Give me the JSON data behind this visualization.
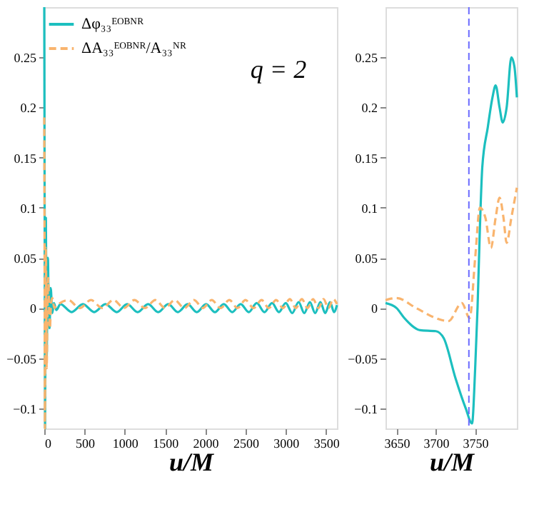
{
  "chart_data": [
    {
      "type": "line",
      "xlabel": "u/M",
      "xlim": [
        0,
        3636
      ],
      "xticks": [
        0,
        500,
        1000,
        1500,
        2000,
        2500,
        3000,
        3500
      ],
      "ylim": [
        -0.12,
        0.3
      ],
      "yticks": [
        -0.1,
        -0.05,
        0,
        0.05,
        0.1,
        0.15,
        0.2,
        0.25
      ],
      "grid": false,
      "legend": "top left",
      "marker": "none",
      "annotations": [
        "q = 2"
      ],
      "series": [
        {
          "name": "Δφ₃₃ᴱᴼᴮᴺᴿ",
          "color": "#1cbfbf",
          "line_style": "solid",
          "x": [
            0,
            5,
            10,
            15,
            20,
            25,
            30,
            38,
            45,
            55,
            65,
            80,
            100,
            120,
            150,
            200,
            340,
            480,
            620,
            760,
            900,
            1030,
            1160,
            1290,
            1415,
            1540,
            1660,
            1780,
            1895,
            2010,
            2120,
            2230,
            2335,
            2440,
            2540,
            2640,
            2735,
            2830,
            2915,
            3000,
            3080,
            3160,
            3230,
            3300,
            3365,
            3430,
            3490,
            3550,
            3600,
            3636
          ],
          "values": [
            0.3,
            0.1,
            -0.12,
            -0.02,
            0.09,
            0.02,
            -0.05,
            0.01,
            0.05,
            0.0,
            -0.02,
            0.02,
            -0.005,
            0.005,
            -0.002,
            0.004,
            -0.004,
            0.004,
            -0.004,
            0.004,
            -0.004,
            0.004,
            -0.004,
            0.004,
            -0.004,
            0.004,
            -0.004,
            0.004,
            -0.004,
            0.004,
            -0.004,
            0.004,
            -0.004,
            0.004,
            -0.004,
            0.005,
            -0.004,
            0.005,
            -0.004,
            0.005,
            -0.005,
            0.006,
            -0.005,
            0.006,
            -0.005,
            0.006,
            -0.005,
            0.006,
            -0.004,
            0.003
          ]
        },
        {
          "name": "ΔA₃₃ᴱᴼᴮᴺᴿ/A₃₃ᴺᴿ",
          "color": "#f9b46e",
          "line_style": "dashed",
          "x": [
            0,
            4,
            8,
            14,
            20,
            25,
            30,
            40,
            50,
            60,
            70,
            85,
            100,
            125,
            150,
            300,
            440,
            580,
            720,
            860,
            990,
            1120,
            1250,
            1380,
            1500,
            1620,
            1740,
            1860,
            1970,
            2080,
            2190,
            2300,
            2400,
            2500,
            2600,
            2700,
            2790,
            2880,
            2965,
            3050,
            3125,
            3200,
            3270,
            3340,
            3405,
            3470,
            3530,
            3590,
            3636
          ],
          "values": [
            0.19,
            0.05,
            -0.12,
            0.0,
            0.06,
            0.0,
            -0.06,
            0.0,
            0.03,
            0.0,
            -0.02,
            0.005,
            0.01,
            0.0,
            0.002,
            0.008,
            0.0,
            0.008,
            0.0,
            0.008,
            0.0,
            0.008,
            0.0,
            0.008,
            0.0,
            0.008,
            0.0,
            0.008,
            0.0,
            0.008,
            0.0,
            0.008,
            0.0,
            0.008,
            0.0,
            0.008,
            0.0,
            0.008,
            0.0,
            0.009,
            0.0,
            0.009,
            0.0,
            0.009,
            0.0,
            0.009,
            0.0,
            0.009,
            0.004
          ]
        }
      ]
    },
    {
      "type": "line",
      "xlabel": "u/M",
      "xlim": [
        3636,
        3803
      ],
      "xticks": [
        3650,
        3700,
        3750
      ],
      "ylim": [
        -0.12,
        0.3
      ],
      "yticks": [
        -0.1,
        -0.05,
        0,
        0.05,
        0.1,
        0.15,
        0.2,
        0.25
      ],
      "grid": false,
      "legend": false,
      "marker": "none",
      "ref_lines": [
        {
          "axis": "x",
          "value": 3742,
          "label": null,
          "color": "#6a6aff",
          "line_style": "dashed"
        }
      ],
      "series": [
        {
          "color": "#1cbfbf",
          "line_style": "solid",
          "x": [
            3636,
            3650,
            3660,
            3680,
            3700,
            3710,
            3725,
            3738,
            3746,
            3750,
            3753,
            3756,
            3759,
            3766,
            3772,
            3776,
            3781,
            3785,
            3790,
            3796,
            3800,
            3803
          ],
          "values": [
            0.005,
            0.0,
            -0.01,
            -0.022,
            -0.023,
            -0.03,
            -0.07,
            -0.1,
            -0.115,
            -0.06,
            0.0,
            0.08,
            0.14,
            0.18,
            0.21,
            0.222,
            0.2,
            0.185,
            0.2,
            0.25,
            0.24,
            0.21
          ]
        },
        {
          "color": "#f9b46e",
          "line_style": "dashed",
          "x": [
            3636,
            3650,
            3675,
            3700,
            3716,
            3733,
            3743,
            3750,
            3756,
            3763,
            3770,
            3776,
            3781,
            3786,
            3790,
            3796,
            3803
          ],
          "values": [
            0.008,
            0.01,
            0.0,
            -0.01,
            -0.013,
            0.005,
            -0.01,
            0.05,
            0.1,
            0.09,
            0.06,
            0.09,
            0.11,
            0.09,
            0.065,
            0.09,
            0.12
          ]
        }
      ]
    }
  ]
}
